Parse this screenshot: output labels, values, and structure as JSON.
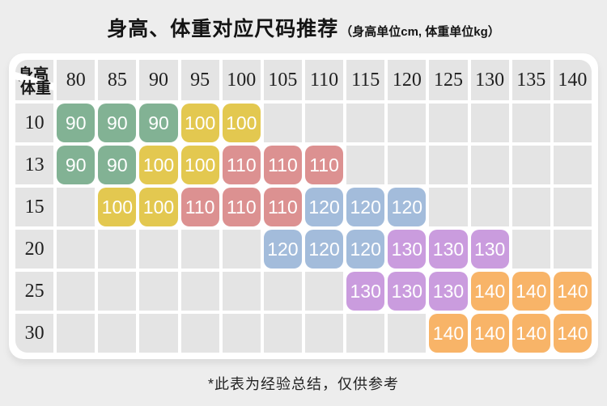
{
  "title": "身高、体重对应尺码推荐",
  "subtitle": "（身高单位cm, 体重单位kg）",
  "footnote": "*此表为经验总结，仅供参考",
  "colors": {
    "page_background": "#ededed",
    "card_background": "#ffffff",
    "cell_background": "#e4e4e4",
    "cell_text": "#1f1f1f",
    "size_cell_text": "#ffffff"
  },
  "chart_data": {
    "type": "table",
    "title": "身高、体重对应尺码推荐",
    "unit_note": "（身高单位cm, 体重单位kg）",
    "corner": {
      "top": "身高",
      "bottom": "体重"
    },
    "columns_height_cm": [
      80,
      85,
      90,
      95,
      100,
      105,
      110,
      115,
      120,
      125,
      130,
      135,
      140
    ],
    "rows": [
      {
        "weight_kg": 10,
        "sizes": [
          90,
          90,
          90,
          100,
          100,
          null,
          null,
          null,
          null,
          null,
          null,
          null,
          null
        ]
      },
      {
        "weight_kg": 13,
        "sizes": [
          90,
          90,
          100,
          100,
          110,
          110,
          110,
          null,
          null,
          null,
          null,
          null,
          null
        ]
      },
      {
        "weight_kg": 15,
        "sizes": [
          null,
          100,
          100,
          110,
          110,
          110,
          120,
          120,
          120,
          null,
          null,
          null,
          null
        ]
      },
      {
        "weight_kg": 20,
        "sizes": [
          null,
          null,
          null,
          null,
          null,
          120,
          120,
          120,
          130,
          130,
          130,
          null,
          null
        ]
      },
      {
        "weight_kg": 25,
        "sizes": [
          null,
          null,
          null,
          null,
          null,
          null,
          null,
          130,
          130,
          130,
          140,
          140,
          140
        ]
      },
      {
        "weight_kg": 30,
        "sizes": [
          null,
          null,
          null,
          null,
          null,
          null,
          null,
          null,
          null,
          140,
          140,
          140,
          140
        ]
      }
    ],
    "size_colors": {
      "90": "#82b294",
      "100": "#e3c850",
      "110": "#dc9191",
      "120": "#a3bcdb",
      "130": "#ca9cde",
      "140": "#f8b468"
    },
    "footnote": "*此表为经验总结，仅供参考"
  }
}
